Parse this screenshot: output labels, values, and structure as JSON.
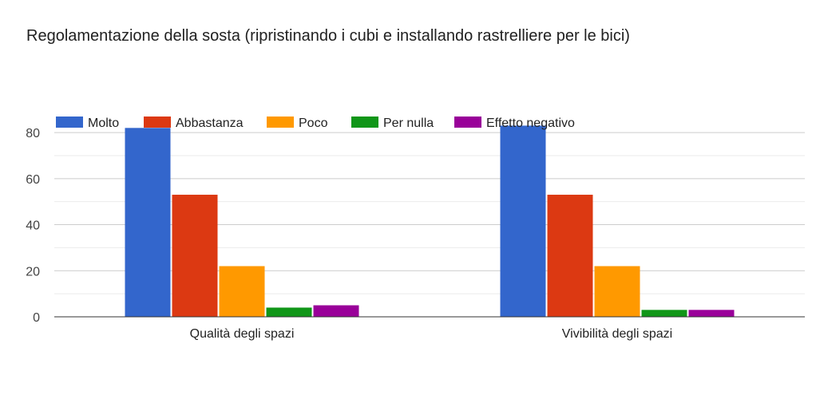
{
  "chart_data": {
    "type": "bar",
    "title": "Regolamentazione della sosta (ripristinando i cubi e installando rastrelliere per le bici)",
    "categories": [
      "Qualità degli spazi",
      "Vivibilità degli spazi"
    ],
    "series": [
      {
        "name": "Molto",
        "color": "#3366cc",
        "values": [
          82,
          83
        ]
      },
      {
        "name": "Abbastanza",
        "color": "#dc3912",
        "values": [
          53,
          53
        ]
      },
      {
        "name": "Poco",
        "color": "#ff9900",
        "values": [
          22,
          22
        ]
      },
      {
        "name": "Per nulla",
        "color": "#109618",
        "values": [
          4,
          3
        ]
      },
      {
        "name": "Effetto negativo",
        "color": "#990099",
        "values": [
          5,
          3
        ]
      }
    ],
    "yticks": [
      0,
      20,
      40,
      60,
      80
    ],
    "ylim": [
      0,
      88
    ],
    "grid": true,
    "legend": "top"
  }
}
